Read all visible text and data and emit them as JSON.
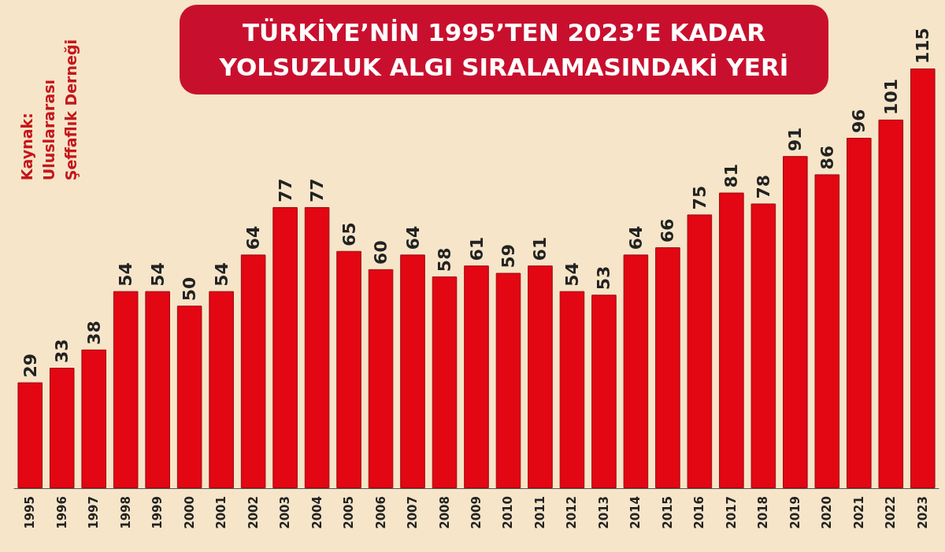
{
  "chart_data": {
    "type": "bar",
    "title": "TÜRKİYE’NİN 1995’TEN 2023’E KADAR\nYOLSUZLUK ALGI SIRALAMASINDAKİ YERİ",
    "annotations": [
      "Kaynak:\nUluslararası\nŞeffaflık Derneği"
    ],
    "categories": [
      "1995",
      "1996",
      "1997",
      "1998",
      "1999",
      "2000",
      "2001",
      "2002",
      "2003",
      "2004",
      "2005",
      "2006",
      "2007",
      "2008",
      "2009",
      "2010",
      "2011",
      "2012",
      "2013",
      "2014",
      "2015",
      "2016",
      "2017",
      "2018",
      "2019",
      "2020",
      "2021",
      "2022",
      "2023"
    ],
    "values": [
      29,
      33,
      38,
      54,
      54,
      50,
      54,
      64,
      77,
      77,
      65,
      60,
      64,
      58,
      61,
      59,
      61,
      54,
      53,
      64,
      66,
      75,
      81,
      78,
      91,
      86,
      96,
      101,
      115
    ],
    "color": "#e30613",
    "data_labels": true
  }
}
